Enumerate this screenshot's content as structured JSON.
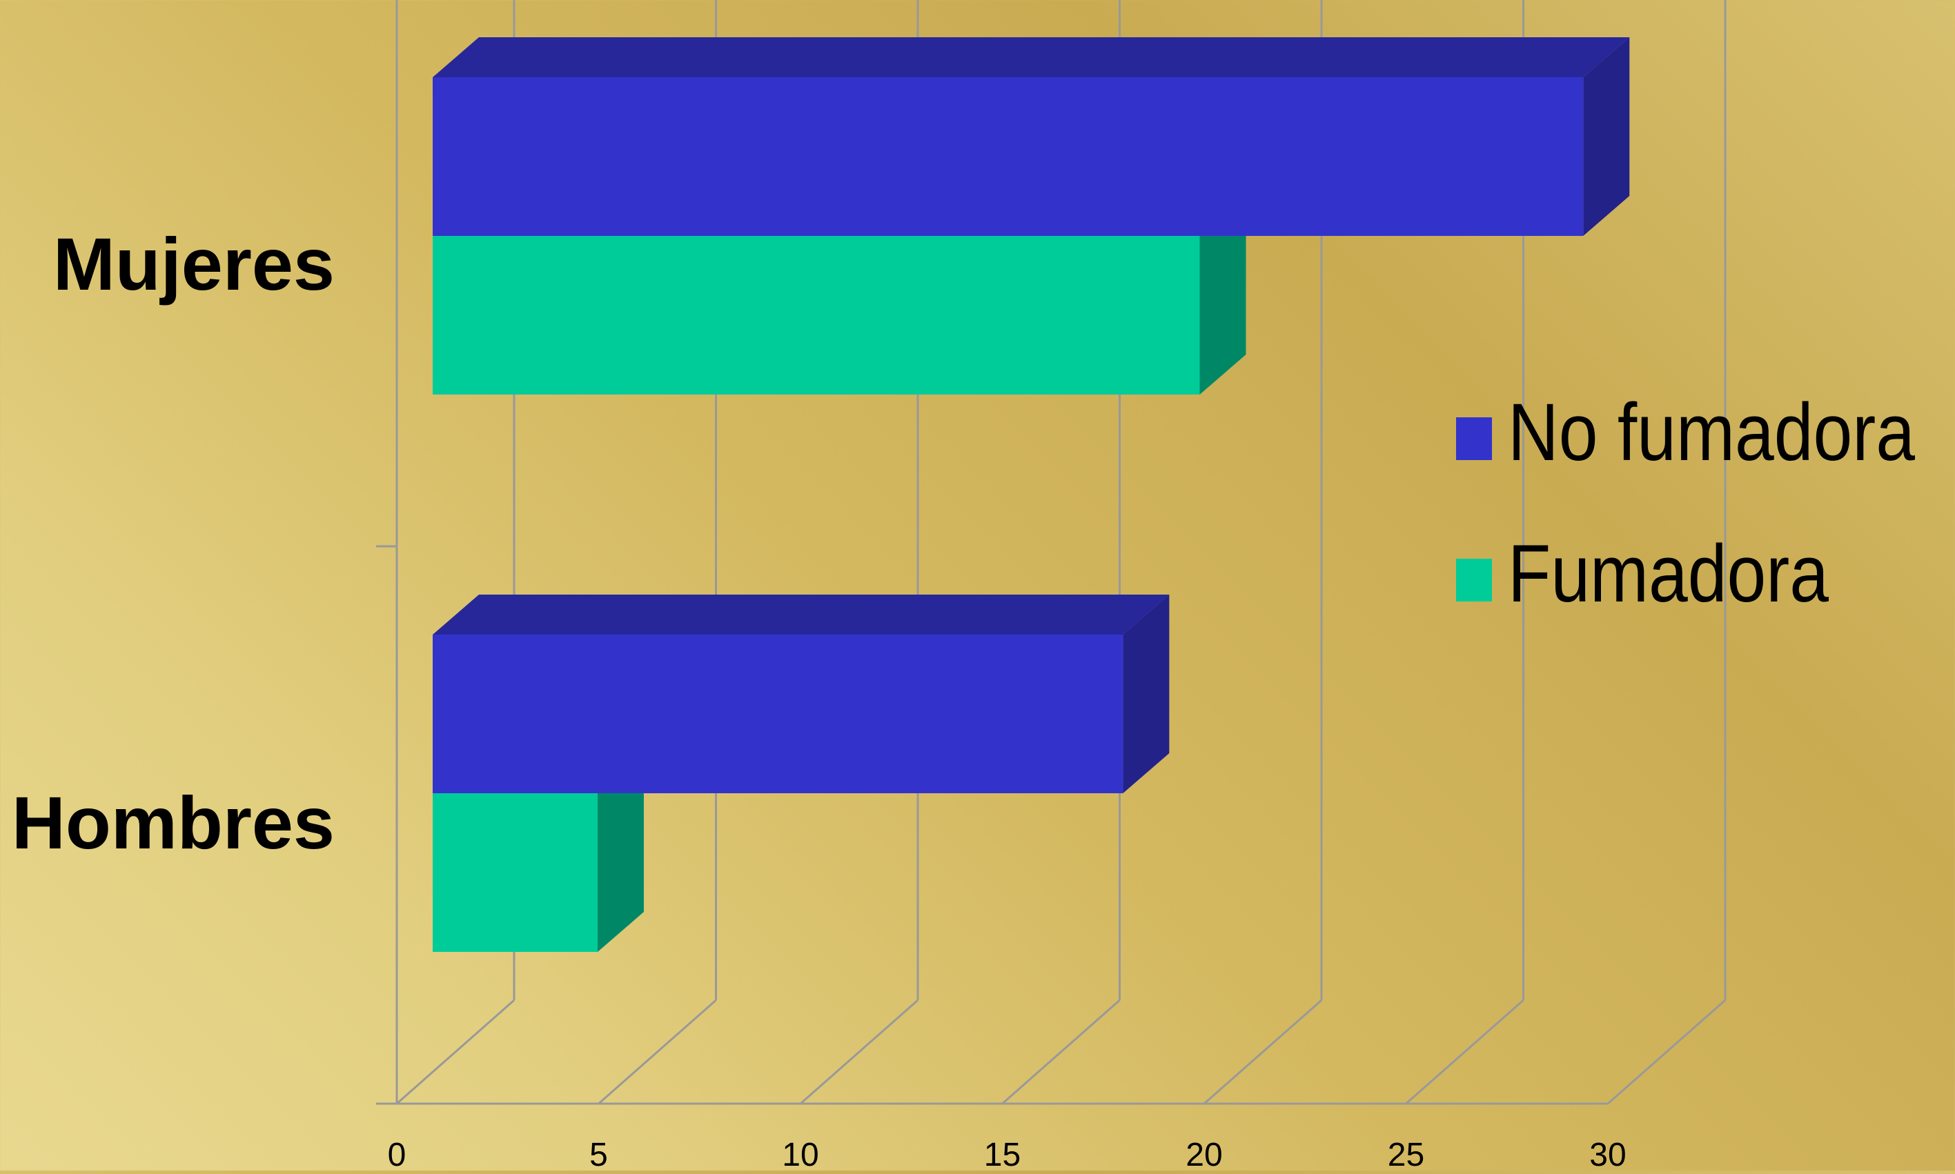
{
  "chart_data": {
    "type": "bar",
    "orientation": "horizontal",
    "style": "3d",
    "title": "",
    "xlabel": "",
    "ylabel": "",
    "categories": [
      "Hombres",
      "Mujeres"
    ],
    "series": [
      {
        "name": "No fumadora",
        "values": [
          18,
          30
        ],
        "color": "#3333cc"
      },
      {
        "name": "Fumadora",
        "values": [
          4.3,
          20
        ],
        "color": "#00cc99"
      }
    ],
    "xlim": [
      0,
      30
    ],
    "xticks": [
      "0",
      "5",
      "10",
      "15",
      "20",
      "25",
      "30"
    ],
    "grid": true,
    "legend": "right"
  },
  "colors": {
    "no_fumadora_front": "#3333cc",
    "no_fumadora_top": "#27279a",
    "no_fumadora_side": "#222288",
    "fumadora_front": "#00cc99",
    "fumadora_side": "#008866",
    "gridline": "#999999"
  }
}
